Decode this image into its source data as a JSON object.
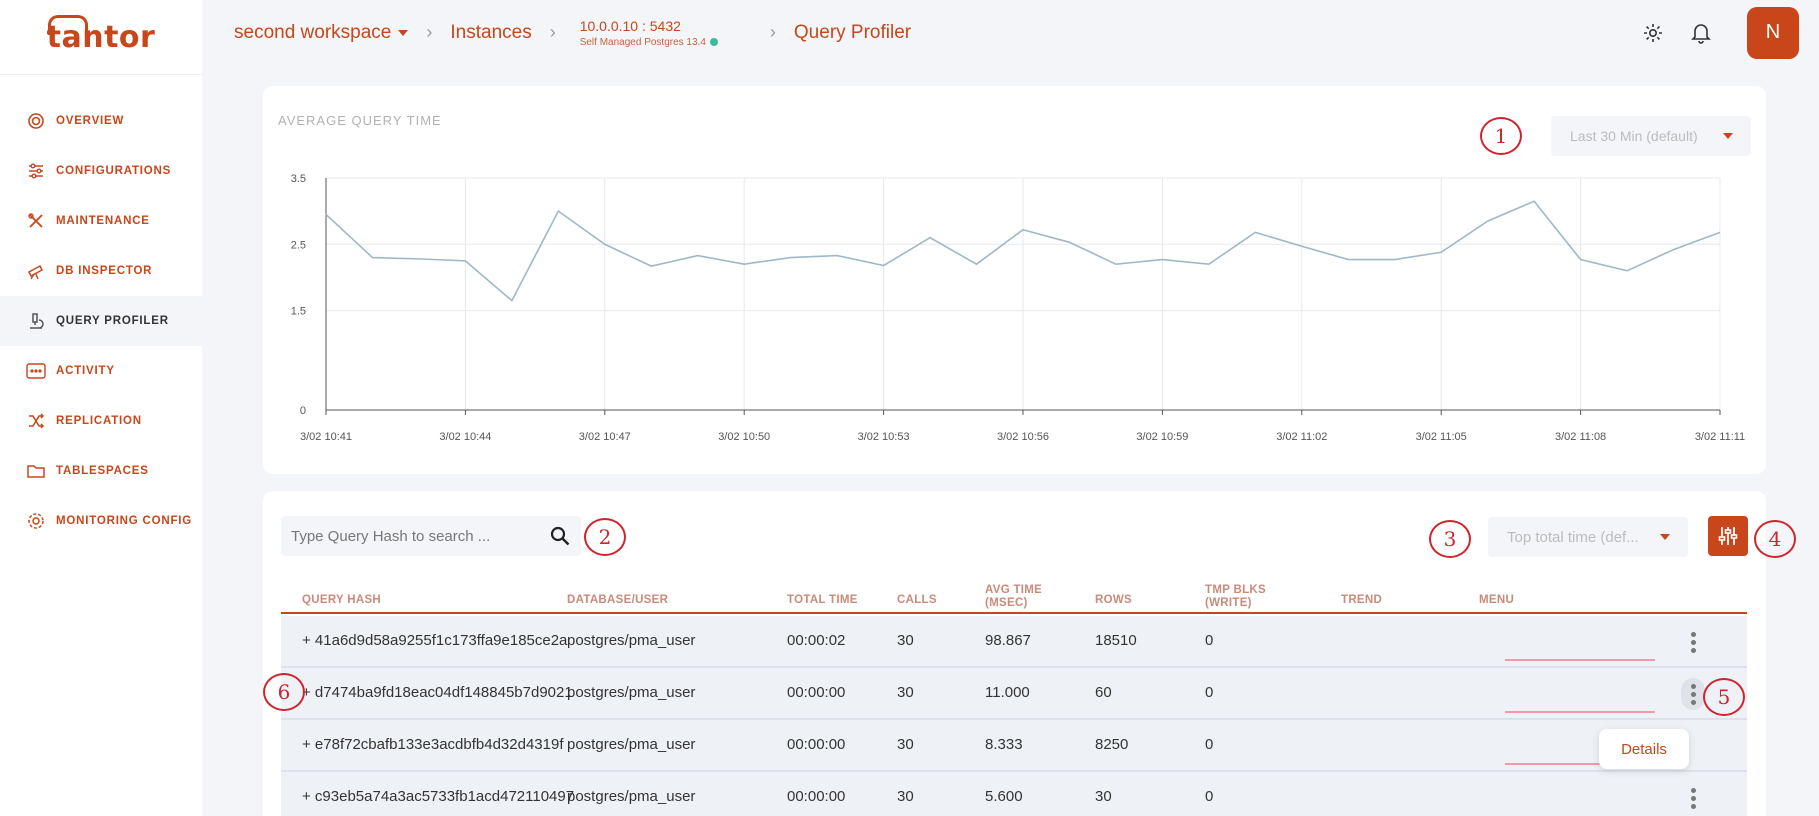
{
  "brand": {
    "logo_text": "tantor",
    "accent": "#c8461a"
  },
  "sidebar": {
    "items": [
      {
        "label": "OVERVIEW",
        "icon": "overview-icon",
        "active": false
      },
      {
        "label": "CONFIGURATIONS",
        "icon": "sliders-icon",
        "active": false
      },
      {
        "label": "MAINTENANCE",
        "icon": "tools-icon",
        "active": false
      },
      {
        "label": "DB INSPECTOR",
        "icon": "telescope-icon",
        "active": false
      },
      {
        "label": "QUERY PROFILER",
        "icon": "microscope-icon",
        "active": true
      },
      {
        "label": "ACTIVITY",
        "icon": "activity-icon",
        "active": false
      },
      {
        "label": "REPLICATION",
        "icon": "shuffle-icon",
        "active": false
      },
      {
        "label": "TABLESPACES",
        "icon": "folder-icon",
        "active": false
      },
      {
        "label": "MONITORING CONFIG",
        "icon": "gear-icon",
        "active": false
      }
    ]
  },
  "header": {
    "workspace": "second workspace",
    "instances": "Instances",
    "host": "10.0.0.10 : 5432",
    "host_sub": "Self Managed Postgres 13.4",
    "page": "Query Profiler",
    "avatar_initial": "N"
  },
  "chart_card": {
    "title": "AVERAGE QUERY TIME",
    "range_select": "Last 30 Min (default)"
  },
  "chart_data": {
    "type": "line",
    "title": "AVERAGE QUERY TIME",
    "x": [
      "3/02 10:41",
      "3/02 10:42",
      "3/02 10:43",
      "3/02 10:44",
      "3/02 10:45",
      "3/02 10:46",
      "3/02 10:47",
      "3/02 10:48",
      "3/02 10:49",
      "3/02 10:50",
      "3/02 10:51",
      "3/02 10:52",
      "3/02 10:53",
      "3/02 10:54",
      "3/02 10:55",
      "3/02 10:56",
      "3/02 10:57",
      "3/02 10:58",
      "3/02 10:59",
      "3/02 11:00",
      "3/02 11:01",
      "3/02 11:02",
      "3/02 11:03",
      "3/02 11:04",
      "3/02 11:05",
      "3/02 11:06",
      "3/02 11:07",
      "3/02 11:08",
      "3/02 11:09",
      "3/02 11:10",
      "3/02 11:11"
    ],
    "values": [
      2.95,
      2.3,
      2.28,
      2.25,
      1.65,
      3.0,
      2.5,
      2.17,
      2.33,
      2.2,
      2.3,
      2.33,
      2.18,
      2.6,
      2.2,
      2.72,
      2.53,
      2.2,
      2.27,
      2.2,
      2.68,
      2.47,
      2.27,
      2.27,
      2.38,
      2.85,
      3.15,
      2.27,
      2.1,
      2.42,
      2.68
    ],
    "tick_labels": [
      "3/02 10:41",
      "3/02 10:44",
      "3/02 10:47",
      "3/02 10:50",
      "3/02 10:53",
      "3/02 10:56",
      "3/02 10:59",
      "3/02 11:02",
      "3/02 11:05",
      "3/02 11:08",
      "3/02 11:11"
    ],
    "yticks": [
      "0",
      "1.5",
      "2.5",
      "3.5"
    ],
    "ylim": [
      0,
      3.5
    ],
    "grid": true,
    "line_color": "#9fb8c6"
  },
  "table": {
    "search_placeholder": "Type Query Hash to search ...",
    "sort_select": "Top total time (def...",
    "columns": {
      "hash": "QUERY HASH",
      "db": "DATABASE/USER",
      "total": "TOTAL TIME",
      "calls": "CALLS",
      "avg1": "AVG TIME",
      "avg2": "(MSEC)",
      "rows": "ROWS",
      "tmp1": "TMP BLKS",
      "tmp2": "(WRITE)",
      "trend": "TREND",
      "menu": "MENU"
    },
    "rows": [
      {
        "hash": "+ 41a6d9d58a9255f1c173ffa9e185ce2a",
        "db": "postgres/pma_user",
        "total": "00:00:02",
        "calls": "30",
        "avg": "98.867",
        "rows": "18510",
        "tmp": "0"
      },
      {
        "hash": "+ d7474ba9fd18eac04df148845b7d9021",
        "db": "postgres/pma_user",
        "total": "00:00:00",
        "calls": "30",
        "avg": "11.000",
        "rows": "60",
        "tmp": "0"
      },
      {
        "hash": "+ e78f72cbafb133e3acdbfb4d32d4319f",
        "db": "postgres/pma_user",
        "total": "00:00:00",
        "calls": "30",
        "avg": "8.333",
        "rows": "8250",
        "tmp": "0"
      },
      {
        "hash": "+ c93eb5a74a3ac5733fb1acd472110497",
        "db": "postgres/pma_user",
        "total": "00:00:00",
        "calls": "30",
        "avg": "5.600",
        "rows": "30",
        "tmp": "0"
      }
    ],
    "menu_popup": "Details"
  },
  "annotations": [
    "1",
    "2",
    "3",
    "4",
    "5",
    "6"
  ]
}
